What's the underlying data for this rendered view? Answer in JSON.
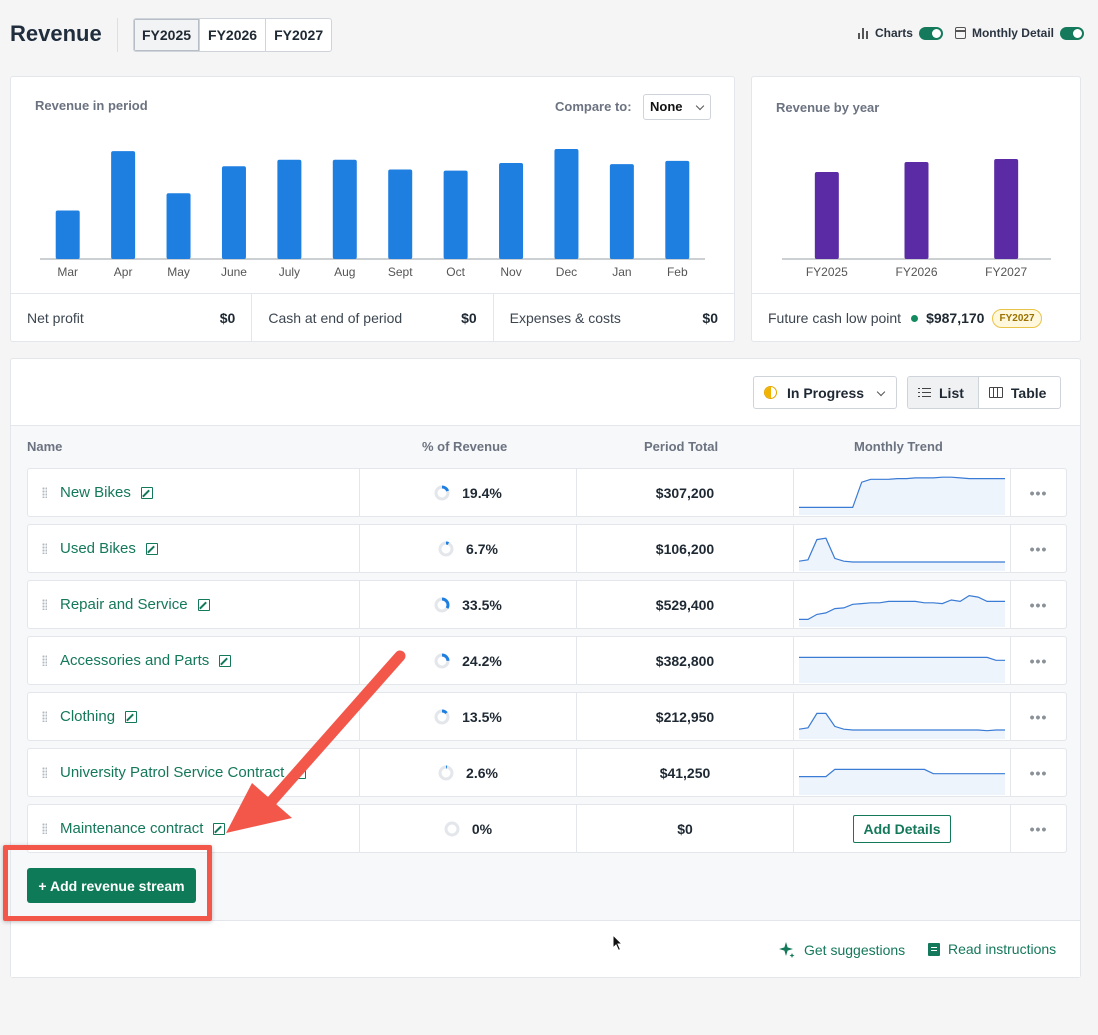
{
  "header": {
    "title": "Revenue",
    "fy_tabs": [
      "FY2025",
      "FY2026",
      "FY2027"
    ],
    "active_fy": "FY2025",
    "toggles": [
      {
        "label": "Charts",
        "on": true
      },
      {
        "label": "Monthly Detail",
        "on": true
      }
    ]
  },
  "period_card": {
    "title": "Revenue in period",
    "compare_label": "Compare to:",
    "compare_value": "None",
    "stats": [
      {
        "label": "Net profit",
        "value": "$0"
      },
      {
        "label": "Cash at end of period",
        "value": "$0"
      },
      {
        "label": "Expenses & costs",
        "value": "$0"
      }
    ]
  },
  "chart_data": [
    {
      "type": "bar",
      "title": "Revenue in period",
      "categories": [
        "Mar",
        "Apr",
        "May",
        "June",
        "July",
        "Aug",
        "Sept",
        "Oct",
        "Nov",
        "Dec",
        "Jan",
        "Feb"
      ],
      "values": [
        45,
        100,
        61,
        86,
        92,
        92,
        83,
        82,
        89,
        102,
        88,
        91
      ],
      "color": "#1f7fe0",
      "ylabel": "",
      "xlabel": ""
    },
    {
      "type": "bar",
      "title": "Revenue by year",
      "categories": [
        "FY2025",
        "FY2026",
        "FY2027"
      ],
      "values": [
        87,
        97,
        100
      ],
      "color": "#5b2ba6",
      "ylabel": "",
      "xlabel": ""
    }
  ],
  "year_card": {
    "title": "Revenue by year",
    "lowpoint_label": "Future cash low point",
    "lowpoint_value": "$987,170",
    "lowpoint_badge": "FY2027"
  },
  "list": {
    "status_filter": "In Progress",
    "views": [
      "List",
      "Table"
    ],
    "active_view": "List",
    "columns": [
      "Name",
      "% of Revenue",
      "Period Total",
      "Monthly Trend"
    ],
    "rows": [
      {
        "name": "New Bikes",
        "pct": "19.4%",
        "pct_value": 19.4,
        "total": "$307,200",
        "trend": [
          5,
          5,
          5,
          5,
          5,
          5,
          5,
          40,
          44,
          44,
          44,
          45,
          45,
          46,
          46,
          46,
          47,
          47,
          46,
          45,
          45,
          45,
          45,
          45
        ]
      },
      {
        "name": "Used Bikes",
        "pct": "6.7%",
        "pct_value": 6.7,
        "total": "$106,200",
        "trend": [
          8,
          10,
          38,
          40,
          12,
          8,
          7,
          7,
          7,
          7,
          7,
          7,
          7,
          7,
          7,
          7,
          7,
          7,
          7,
          7,
          7,
          7,
          7,
          7
        ]
      },
      {
        "name": "Repair and Service",
        "pct": "33.5%",
        "pct_value": 33.5,
        "total": "$529,400",
        "trend": [
          5,
          5,
          12,
          14,
          20,
          21,
          26,
          27,
          28,
          28,
          30,
          30,
          30,
          30,
          28,
          28,
          27,
          32,
          30,
          38,
          36,
          30,
          30,
          30
        ]
      },
      {
        "name": "Accessories and Parts",
        "pct": "24.2%",
        "pct_value": 24.2,
        "total": "$382,800",
        "trend": [
          30,
          30,
          30,
          30,
          30,
          30,
          30,
          30,
          30,
          30,
          30,
          30,
          30,
          30,
          30,
          30,
          30,
          30,
          30,
          30,
          30,
          30,
          26,
          26
        ]
      },
      {
        "name": "Clothing",
        "pct": "13.5%",
        "pct_value": 13.5,
        "total": "$212,950",
        "trend": [
          8,
          10,
          30,
          30,
          12,
          8,
          7,
          7,
          7,
          7,
          7,
          7,
          7,
          7,
          7,
          7,
          7,
          7,
          7,
          7,
          7,
          6,
          7,
          7
        ]
      },
      {
        "name": "University Patrol Service Contract",
        "pct": "2.6%",
        "pct_value": 2.6,
        "total": "$41,250",
        "trend": [
          20,
          20,
          20,
          20,
          30,
          30,
          30,
          30,
          30,
          30,
          30,
          30,
          30,
          30,
          30,
          24,
          24,
          24,
          24,
          24,
          24,
          24,
          24,
          24
        ]
      },
      {
        "name": "Maintenance contract",
        "pct": "0%",
        "pct_value": 0,
        "total": "$0",
        "trend": null,
        "action": "Add Details"
      }
    ],
    "add_button": "+ Add revenue stream",
    "footer_links": [
      {
        "label": "Get suggestions",
        "icon": "sparkle-icon"
      },
      {
        "label": "Read instructions",
        "icon": "document-icon"
      }
    ]
  },
  "colors": {
    "accent_green": "#14785a",
    "bar_blue": "#1f7fe0",
    "bar_purple": "#5b2ba6",
    "annotation_red": "#f2574a"
  }
}
